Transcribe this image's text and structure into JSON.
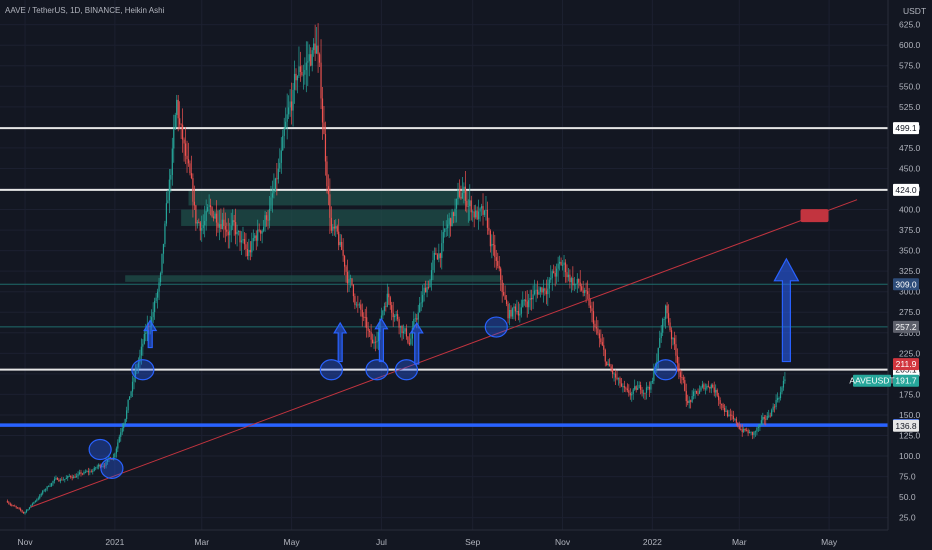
{
  "header": {
    "title": "AAVE / TetherUS, 1D, BINANCE, Heikin Ashi",
    "currency": "USDT"
  },
  "colors": {
    "background": "#131722",
    "up": "#26a69a",
    "down": "#ef5350",
    "white_line": "#e6e6e6",
    "blue_line": "#2962ff",
    "teal_line": "#1e6b6b",
    "trend_line": "#c2343f",
    "arrow": "#2962ff",
    "circle": "#2962ff",
    "zone": "#1f4f4a"
  },
  "chart_data": {
    "type": "candlestick",
    "title": "AAVE / TetherUS, 1D, BINANCE, Heikin Ashi",
    "y_scale": "linear",
    "ylim": [
      10,
      655
    ],
    "y_ticks": [
      25,
      50,
      75,
      100,
      125,
      150,
      175,
      200,
      225,
      250,
      275,
      300,
      325,
      350,
      375,
      400,
      425,
      450,
      475,
      500,
      525,
      550,
      575,
      600,
      625
    ],
    "x_ticks": [
      "Nov",
      "2021",
      "Mar",
      "May",
      "Jul",
      "Sep",
      "Nov",
      "2022",
      "Mar",
      "May"
    ],
    "x_tick_dates": [
      "2020-11-01",
      "2021-01-01",
      "2021-03-01",
      "2021-05-01",
      "2021-07-01",
      "2021-09-01",
      "2021-11-01",
      "2022-01-01",
      "2022-03-01",
      "2022-05-01"
    ],
    "x_range": [
      "2020-10-15",
      "2022-06-10"
    ],
    "price_anchors": [
      {
        "date": "2020-10-20",
        "price": 45
      },
      {
        "date": "2020-10-31",
        "price": 30
      },
      {
        "date": "2020-11-20",
        "price": 70
      },
      {
        "date": "2020-12-15",
        "price": 80
      },
      {
        "date": "2020-12-31",
        "price": 100
      },
      {
        "date": "2021-01-15",
        "price": 200
      },
      {
        "date": "2021-02-01",
        "price": 310
      },
      {
        "date": "2021-02-12",
        "price": 520
      },
      {
        "date": "2021-02-25",
        "price": 380
      },
      {
        "date": "2021-03-15",
        "price": 400
      },
      {
        "date": "2021-04-01",
        "price": 340
      },
      {
        "date": "2021-04-20",
        "price": 420
      },
      {
        "date": "2021-05-05",
        "price": 560
      },
      {
        "date": "2021-05-18",
        "price": 600
      },
      {
        "date": "2021-05-28",
        "price": 380
      },
      {
        "date": "2021-06-10",
        "price": 310
      },
      {
        "date": "2021-06-25",
        "price": 230
      },
      {
        "date": "2021-07-05",
        "price": 300
      },
      {
        "date": "2021-07-20",
        "price": 240
      },
      {
        "date": "2021-08-05",
        "price": 330
      },
      {
        "date": "2021-08-25",
        "price": 420
      },
      {
        "date": "2021-09-10",
        "price": 380
      },
      {
        "date": "2021-09-25",
        "price": 270
      },
      {
        "date": "2021-10-15",
        "price": 300
      },
      {
        "date": "2021-11-01",
        "price": 330
      },
      {
        "date": "2021-11-15",
        "price": 300
      },
      {
        "date": "2021-12-01",
        "price": 210
      },
      {
        "date": "2021-12-15",
        "price": 170
      },
      {
        "date": "2022-01-01",
        "price": 190
      },
      {
        "date": "2022-01-10",
        "price": 280
      },
      {
        "date": "2022-01-25",
        "price": 165
      },
      {
        "date": "2022-02-10",
        "price": 190
      },
      {
        "date": "2022-02-25",
        "price": 140
      },
      {
        "date": "2022-03-10",
        "price": 125
      },
      {
        "date": "2022-03-20",
        "price": 145
      },
      {
        "date": "2022-04-01",
        "price": 192
      }
    ],
    "horizontal_levels": [
      {
        "price": 499.1,
        "label": "499.1",
        "style": "white"
      },
      {
        "price": 424.0,
        "label": "424.0",
        "style": "white"
      },
      {
        "price": 205.1,
        "label": "205.1",
        "style": "white"
      },
      {
        "price": 137.7,
        "label": "137.7",
        "style": "blue"
      },
      {
        "price": 309.0,
        "label": "309.0",
        "style": "teal"
      },
      {
        "price": 257.2,
        "label": "257.2",
        "style": "teal"
      }
    ],
    "price_tags": [
      {
        "price": 211.9,
        "label": "211.9",
        "bg": "#d1373f",
        "fg": "#ffffff"
      },
      {
        "price": 191.7,
        "label": "191.7",
        "bg": "#26a69a",
        "fg": "#ffffff"
      },
      {
        "price": 136.8,
        "label": "136.8",
        "bg": "#e6e6e6",
        "fg": "#131722"
      }
    ],
    "symbol_tag": {
      "label": "AAVEUSDT",
      "price": 191.7
    },
    "trend_line": {
      "start": [
        "2020-11-05",
        38
      ],
      "end": [
        "2022-05-20",
        412
      ]
    },
    "target_box": {
      "date": "2022-04-15",
      "price": 392
    },
    "circles": [
      {
        "date": "2020-12-30",
        "price": 85
      },
      {
        "date": "2020-12-22",
        "price": 108
      },
      {
        "date": "2021-01-20",
        "price": 205
      },
      {
        "date": "2021-05-28",
        "price": 205
      },
      {
        "date": "2021-06-28",
        "price": 205
      },
      {
        "date": "2021-07-18",
        "price": 205
      },
      {
        "date": "2021-09-17",
        "price": 257
      },
      {
        "date": "2022-01-10",
        "price": 205
      }
    ],
    "arrows": [
      {
        "date": "2021-01-25",
        "from": 232,
        "to": 265
      },
      {
        "date": "2021-06-03",
        "from": 215,
        "to": 262
      },
      {
        "date": "2021-07-01",
        "from": 215,
        "to": 267
      },
      {
        "date": "2021-07-25",
        "from": 212,
        "to": 262
      },
      {
        "date": "2022-04-02",
        "from": 215,
        "to": 340
      }
    ],
    "zones": [
      {
        "from": "2021-01-08",
        "to": "2021-09-20",
        "low": 312,
        "high": 320
      },
      {
        "from": "2021-02-15",
        "to": "2021-08-30",
        "low": 380,
        "high": 400
      },
      {
        "from": "2021-02-20",
        "to": "2021-08-30",
        "low": 405,
        "high": 425
      }
    ]
  }
}
